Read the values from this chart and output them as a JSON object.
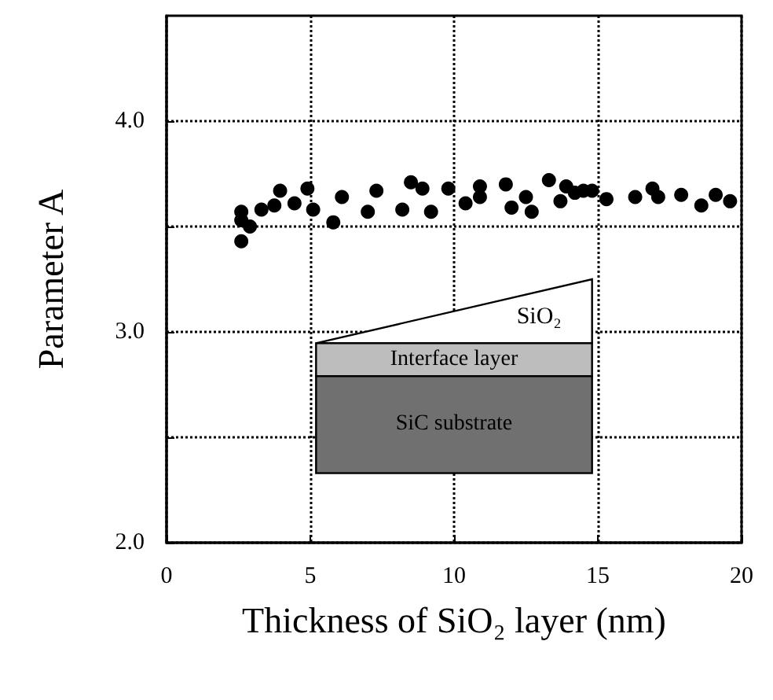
{
  "chart_data": {
    "type": "scatter",
    "xlabel": "Thickness of SiO₂ layer (nm)",
    "ylabel": "Parameter A",
    "x": [
      2.6,
      2.6,
      2.6,
      2.9,
      3.3,
      3.75,
      3.95,
      4.45,
      4.9,
      5.1,
      5.8,
      6.1,
      7.0,
      7.3,
      8.2,
      8.5,
      8.9,
      9.2,
      9.8,
      10.4,
      10.9,
      10.9,
      11.8,
      12.0,
      12.5,
      12.7,
      13.3,
      13.7,
      13.9,
      14.2,
      14.5,
      14.8,
      15.3,
      16.3,
      16.9,
      17.1,
      17.9,
      18.6,
      19.1,
      19.6
    ],
    "series": [
      {
        "color": "#000000",
        "values": [
          3.57,
          3.53,
          3.43,
          3.5,
          3.58,
          3.6,
          3.67,
          3.61,
          3.68,
          3.58,
          3.52,
          3.64,
          3.57,
          3.67,
          3.58,
          3.71,
          3.68,
          3.57,
          3.68,
          3.61,
          3.64,
          3.69,
          3.7,
          3.59,
          3.64,
          3.57,
          3.72,
          3.62,
          3.69,
          3.66,
          3.67,
          3.67,
          3.63,
          3.64,
          3.68,
          3.64,
          3.65,
          3.6,
          3.65,
          3.62
        ]
      }
    ],
    "xlim": [
      0,
      20
    ],
    "xticks": [
      0,
      5,
      10,
      15,
      20
    ],
    "ylim": [
      2,
      4.5
    ],
    "yticks": [
      {
        "value": 2,
        "label": "2.0"
      },
      {
        "value": 2.5,
        "label": null
      },
      {
        "value": 3,
        "label": "3.0"
      },
      {
        "value": 3.5,
        "label": null
      },
      {
        "value": 4,
        "label": "4.0"
      }
    ],
    "grid": true,
    "marker": "circle",
    "annotations": [
      "SiO₂",
      "Interface layer",
      "SiC substrate"
    ]
  }
}
